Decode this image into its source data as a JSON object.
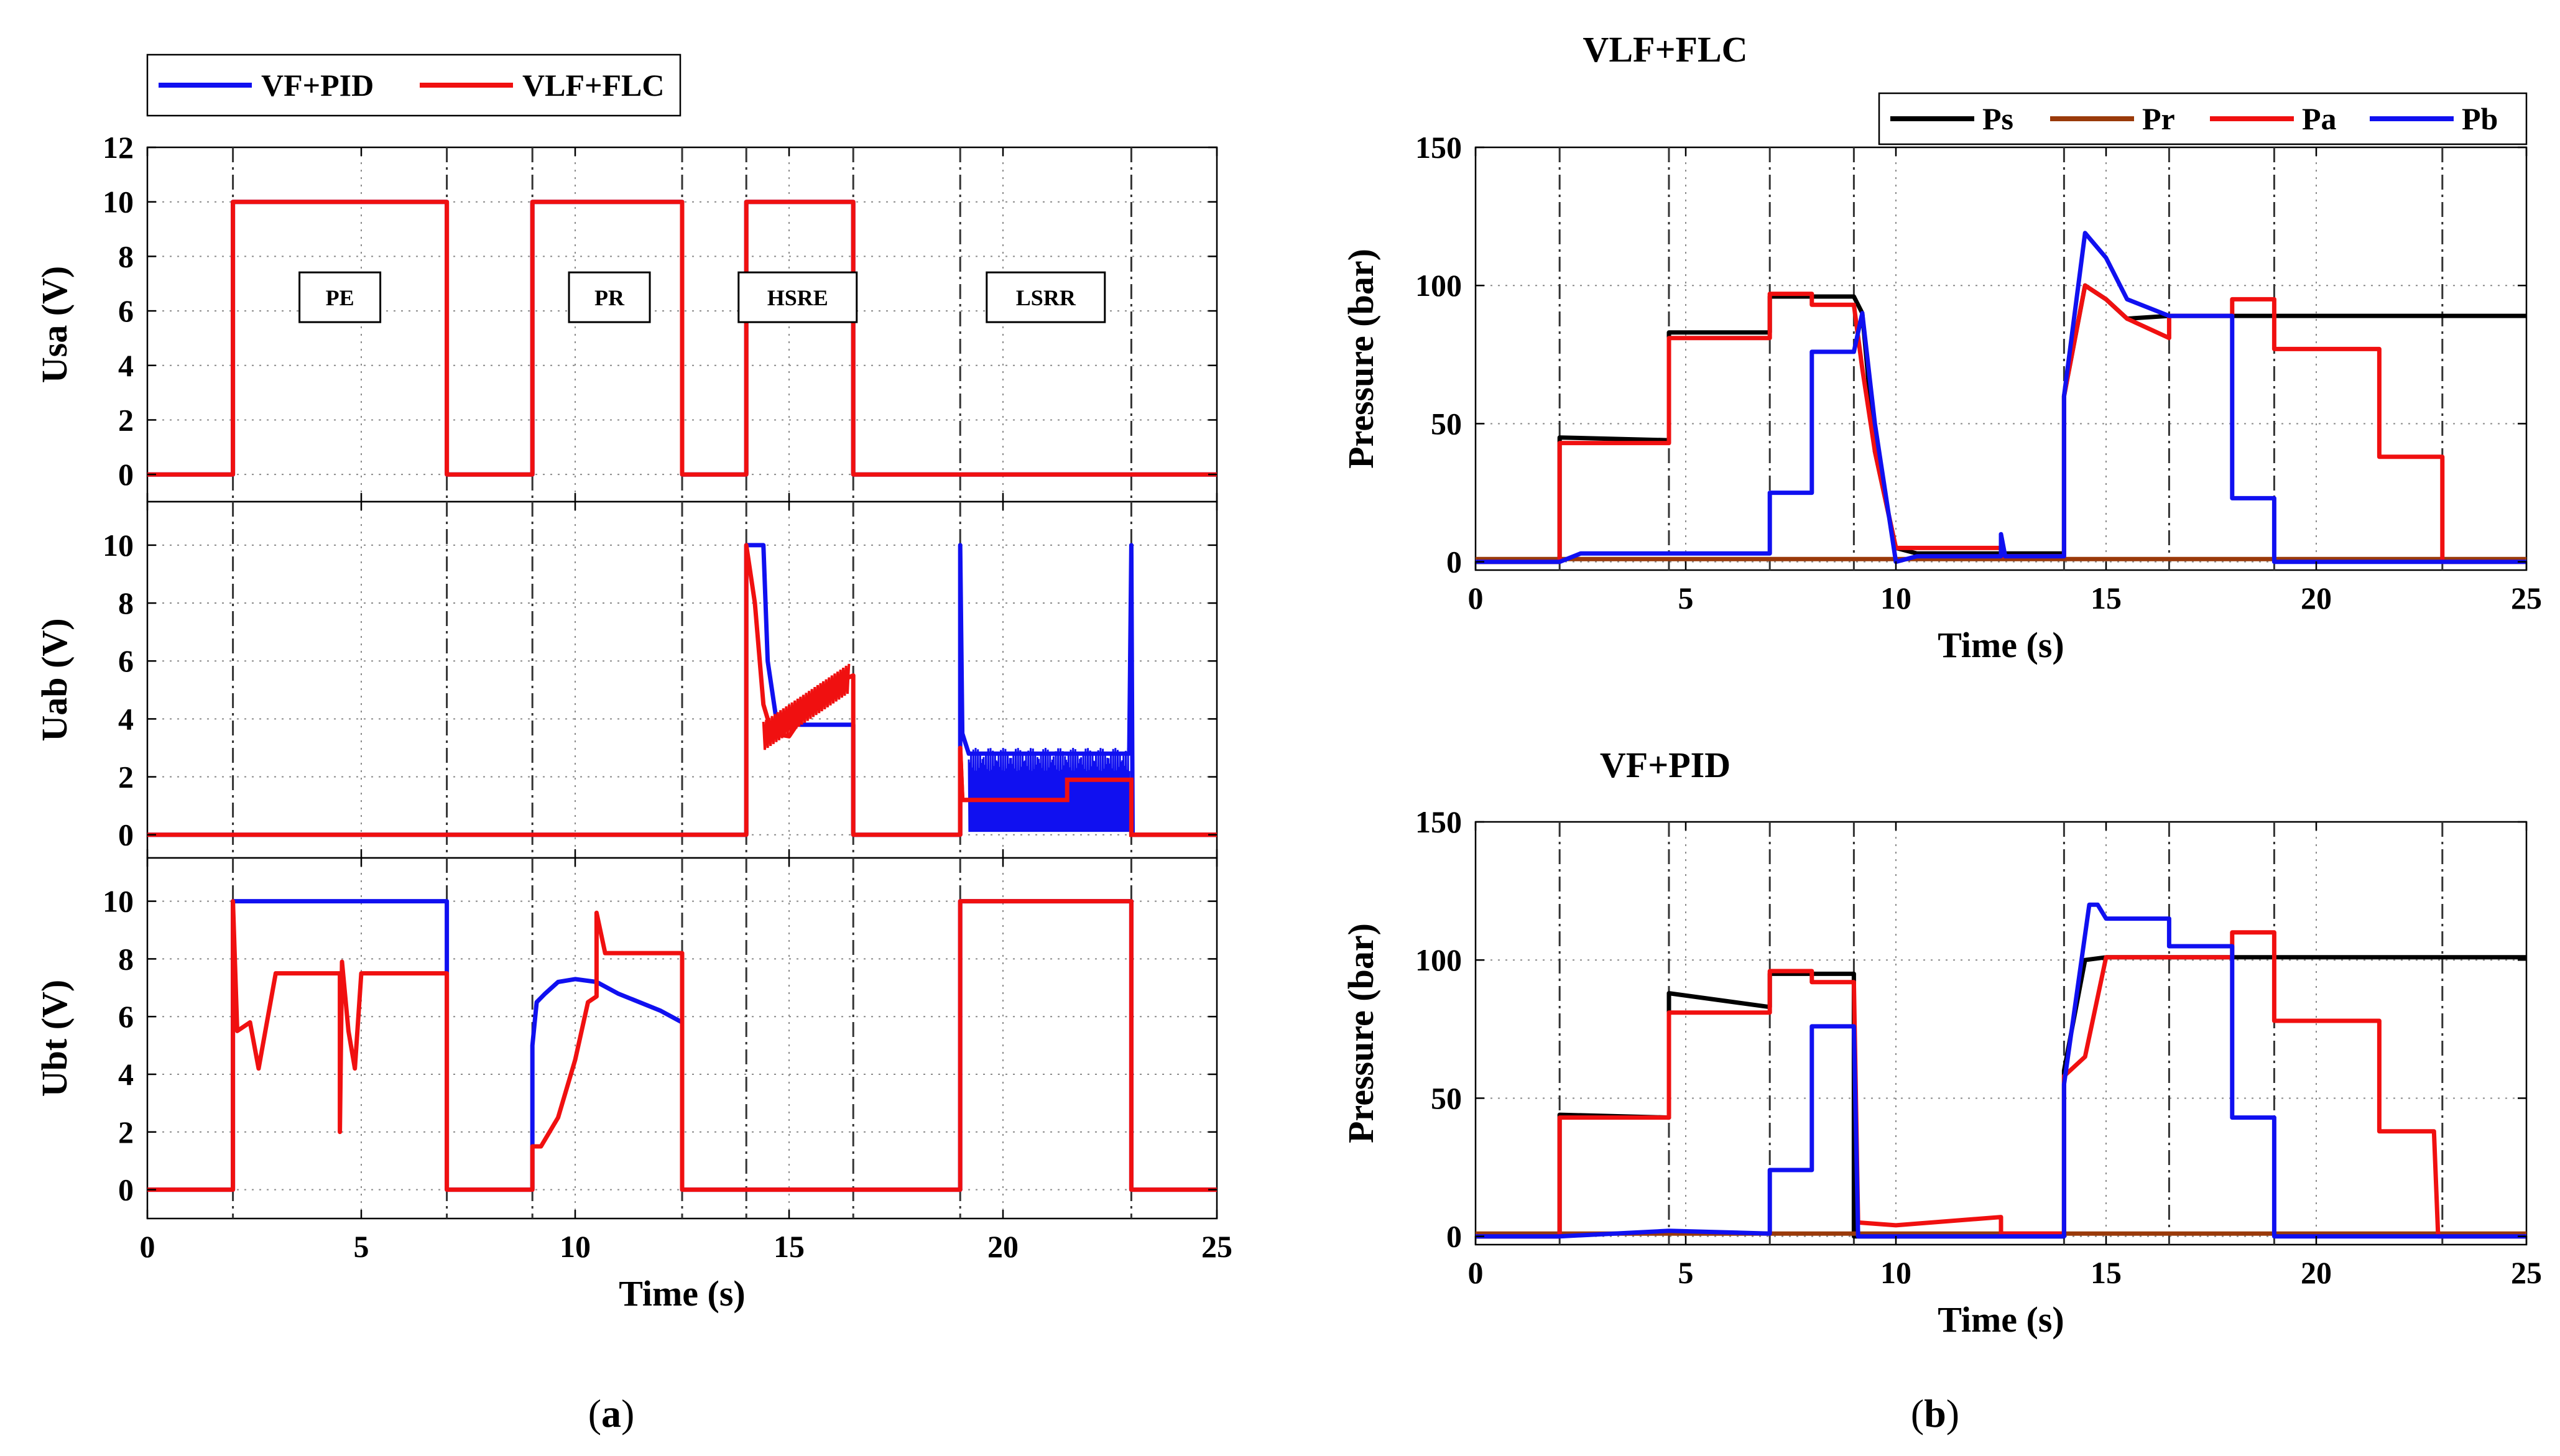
{
  "colors": {
    "blue": "#1010f0",
    "red": "#f01010",
    "black": "#000000",
    "brown": "#9a3a0a"
  },
  "labels": {
    "caption_a_open": "(",
    "caption_a": "a",
    "caption_a_close": ")",
    "caption_b_open": "(",
    "caption_b": "b",
    "caption_b_close": ")"
  },
  "chart_data": [
    {
      "id": "usa",
      "type": "line",
      "title": "",
      "xlabel": "",
      "ylabel": "Usa (V)",
      "xlim": [
        0,
        25
      ],
      "ylim": [
        -1,
        12
      ],
      "xticks": [
        0,
        5,
        10,
        15,
        20,
        25
      ],
      "yticks": [
        0,
        2,
        4,
        6,
        8,
        10,
        12
      ],
      "show_xticklabels": false,
      "vlines": [
        2,
        7,
        9,
        12.5,
        14,
        16.5,
        19,
        23
      ],
      "legend": {
        "placement": "top-left-outside",
        "entries": [
          {
            "name": "VF+PID",
            "color": "blue"
          },
          {
            "name": "VLF+FLC",
            "color": "red"
          }
        ]
      },
      "annotations": [
        {
          "text": "PE",
          "x": 4.5,
          "y": 6.5
        },
        {
          "text": "PR",
          "x": 10.8,
          "y": 6.5
        },
        {
          "text": "HSRE",
          "x": 15.2,
          "y": 6.5
        },
        {
          "text": "LSRR",
          "x": 21,
          "y": 6.5
        }
      ],
      "series": [
        {
          "name": "VF+PID",
          "color": "blue",
          "x": [
            0,
            2,
            2,
            7,
            7,
            9,
            9,
            12.5,
            12.5,
            14,
            14,
            16.5,
            16.5,
            25
          ],
          "y": [
            0,
            0,
            10,
            10,
            0,
            0,
            10,
            10,
            0,
            0,
            10,
            10,
            0,
            0
          ]
        },
        {
          "name": "VLF+FLC",
          "color": "red",
          "x": [
            0,
            2,
            2,
            7,
            7,
            9,
            9,
            12.5,
            12.5,
            14,
            14,
            16.5,
            16.5,
            25
          ],
          "y": [
            0,
            0,
            10,
            10,
            0,
            0,
            10,
            10,
            0,
            0,
            10,
            10,
            0,
            0
          ]
        }
      ]
    },
    {
      "id": "uab",
      "type": "line",
      "title": "",
      "xlabel": "",
      "ylabel": "Uab (V)",
      "xlim": [
        0,
        25
      ],
      "ylim": [
        -0.8,
        11.5
      ],
      "xticks": [
        0,
        5,
        10,
        15,
        20,
        25
      ],
      "yticks": [
        0,
        2,
        4,
        6,
        8,
        10
      ],
      "show_xticklabels": false,
      "vlines": [
        2,
        7,
        9,
        12.5,
        14,
        16.5,
        19,
        23
      ],
      "series": [
        {
          "name": "VF+PID",
          "color": "blue",
          "x": [
            0,
            14,
            14,
            14.1,
            14.4,
            14.5,
            14.7,
            15,
            15.5,
            16.5,
            16.5,
            19,
            19,
            19.05,
            19.2,
            19.2,
            22.95,
            23,
            23.03,
            23.05,
            25
          ],
          "y": [
            0,
            0,
            10,
            10,
            10,
            6,
            4,
            3.8,
            3.8,
            3.8,
            0,
            0,
            10,
            3.5,
            2.8,
            2.8,
            2.8,
            10,
            0,
            0,
            0
          ]
        },
        {
          "name": "VLF+FLC",
          "color": "red",
          "x": [
            0,
            14,
            14,
            14.2,
            14.4,
            14.6,
            15,
            15.5,
            16,
            16.5,
            16.5,
            19,
            19,
            19.05,
            19.2,
            21.5,
            21.5,
            23,
            23,
            25
          ],
          "y": [
            0,
            0,
            10,
            8,
            4.5,
            3.5,
            3.4,
            4.5,
            5.2,
            5.5,
            0,
            0,
            3,
            1.2,
            1.2,
            1.2,
            1.9,
            1.9,
            0,
            0
          ]
        }
      ]
    },
    {
      "id": "ubt",
      "type": "line",
      "title": "",
      "xlabel": "Time (s)",
      "ylabel": "Ubt (V)",
      "xlim": [
        0,
        25
      ],
      "ylim": [
        -1,
        11.5
      ],
      "xticks": [
        0,
        5,
        10,
        15,
        20,
        25
      ],
      "yticks": [
        0,
        2,
        4,
        6,
        8,
        10
      ],
      "show_xticklabels": true,
      "vlines": [
        2,
        7,
        9,
        12.5,
        14,
        16.5,
        19,
        23
      ],
      "series": [
        {
          "name": "VF+PID",
          "color": "blue",
          "x": [
            0,
            2,
            2,
            7,
            7,
            9,
            9,
            9.1,
            9.3,
            9.6,
            10,
            10.5,
            11,
            12,
            12.5,
            12.5,
            19,
            19,
            23,
            23,
            25
          ],
          "y": [
            0,
            0,
            10,
            10,
            0,
            0,
            5,
            6.5,
            6.8,
            7.2,
            7.3,
            7.2,
            6.8,
            6.2,
            5.8,
            0,
            0,
            10,
            10,
            0,
            0
          ]
        },
        {
          "name": "VLF+FLC",
          "color": "red",
          "x": [
            0,
            2,
            2,
            2.1,
            2.4,
            2.6,
            3,
            4.5,
            4.5,
            4.55,
            4.7,
            4.85,
            5,
            7,
            7,
            9,
            9,
            9.2,
            9.6,
            10,
            10.3,
            10.5,
            10.5,
            10.7,
            12.5,
            12.5,
            19,
            19,
            23,
            23,
            25
          ],
          "y": [
            0,
            0,
            10,
            5.5,
            5.8,
            4.2,
            7.5,
            7.5,
            2,
            7.9,
            5.5,
            4.2,
            7.5,
            7.5,
            0,
            0,
            1.5,
            1.5,
            2.5,
            4.5,
            6.5,
            6.7,
            9.6,
            8.2,
            8.2,
            0,
            0,
            10,
            10,
            0,
            0
          ]
        }
      ]
    },
    {
      "id": "pressure_vlf_flc",
      "type": "line",
      "title": "VLF+FLC",
      "xlabel": "Time (s)",
      "ylabel": "Pressure (bar)",
      "xlim": [
        0,
        25
      ],
      "ylim": [
        -3,
        150
      ],
      "xticks": [
        0,
        5,
        10,
        15,
        20,
        25
      ],
      "yticks": [
        0,
        50,
        100,
        150
      ],
      "show_xticklabels": true,
      "vlines": [
        2,
        4.6,
        7,
        9,
        14,
        16.5,
        19,
        23
      ],
      "legend": {
        "placement": "top-right",
        "entries": [
          {
            "name": "Ps",
            "color": "black"
          },
          {
            "name": "Pr",
            "color": "brown"
          },
          {
            "name": "Pa",
            "color": "red"
          },
          {
            "name": "Pb",
            "color": "blue"
          }
        ]
      },
      "series": [
        {
          "name": "Ps",
          "color": "black",
          "x": [
            0,
            2,
            2,
            4.6,
            4.6,
            7,
            7,
            9,
            9.2,
            9.5,
            10,
            10.5,
            14,
            14,
            14.5,
            15,
            15.5,
            16.5,
            25
          ],
          "y": [
            0,
            0,
            45,
            44,
            83,
            83,
            96,
            96,
            90,
            40,
            5,
            3,
            3,
            60,
            100,
            95,
            88,
            89,
            89
          ]
        },
        {
          "name": "Pr",
          "color": "brown",
          "x": [
            0,
            25
          ],
          "y": [
            1,
            1
          ]
        },
        {
          "name": "Pa",
          "color": "red",
          "x": [
            0,
            2,
            2,
            4.6,
            4.6,
            7,
            7,
            8,
            8,
            9,
            9.2,
            9.5,
            10,
            10.5,
            12.5,
            12.5,
            14,
            14,
            14.5,
            15,
            15.5,
            16.5,
            16.5,
            18,
            18,
            19,
            19,
            21.5,
            21.5,
            23,
            23,
            25
          ],
          "y": [
            0,
            0,
            43,
            43,
            81,
            81,
            97,
            97,
            93,
            93,
            70,
            40,
            5,
            5,
            5,
            2,
            2,
            60,
            100,
            95,
            88,
            81,
            89,
            89,
            95,
            95,
            77,
            77,
            38,
            38,
            0,
            0
          ]
        },
        {
          "name": "Pb",
          "color": "blue",
          "x": [
            0,
            2,
            2.5,
            7,
            7,
            8,
            8,
            9,
            9.2,
            9.5,
            10,
            10.5,
            12.5,
            12.5,
            12.6,
            14,
            14,
            14.5,
            15,
            15.5,
            16.5,
            18,
            18,
            19,
            19,
            25
          ],
          "y": [
            0,
            0,
            3,
            3,
            25,
            25,
            76,
            76,
            90,
            50,
            0,
            2,
            2,
            10,
            2,
            2,
            60,
            119,
            110,
            95,
            89,
            89,
            23,
            23,
            0,
            0
          ]
        }
      ]
    },
    {
      "id": "pressure_vf_pid",
      "type": "line",
      "title": "VF+PID",
      "xlabel": "Time (s)",
      "ylabel": "Pressure (bar)",
      "xlim": [
        0,
        25
      ],
      "ylim": [
        -3,
        150
      ],
      "xticks": [
        0,
        5,
        10,
        15,
        20,
        25
      ],
      "yticks": [
        0,
        50,
        100,
        150
      ],
      "show_xticklabels": true,
      "vlines": [
        2,
        4.6,
        7,
        9,
        14,
        16.5,
        19,
        23
      ],
      "series": [
        {
          "name": "Ps",
          "color": "black",
          "x": [
            0,
            2,
            2,
            4.6,
            4.6,
            7,
            7,
            9,
            9,
            14,
            14,
            14.5,
            15,
            16.5,
            25
          ],
          "y": [
            0,
            0,
            44,
            43,
            88,
            83,
            95,
            95,
            0,
            0,
            60,
            100,
            101,
            101,
            101
          ]
        },
        {
          "name": "Pr",
          "color": "brown",
          "x": [
            0,
            25
          ],
          "y": [
            1,
            1
          ]
        },
        {
          "name": "Pa",
          "color": "red",
          "x": [
            0,
            2,
            2,
            4.6,
            4.6,
            7,
            7,
            8,
            8,
            9,
            9.1,
            10,
            12.5,
            12.5,
            14,
            14,
            14.5,
            15,
            16.5,
            18,
            18,
            19,
            19,
            21.5,
            21.5,
            22.8,
            22.9,
            25
          ],
          "y": [
            0,
            0,
            43,
            43,
            81,
            81,
            96,
            96,
            92,
            92,
            5,
            4,
            7,
            1,
            1,
            58,
            65,
            101,
            101,
            101,
            110,
            110,
            78,
            78,
            38,
            38,
            0,
            0
          ]
        },
        {
          "name": "Pb",
          "color": "blue",
          "x": [
            0,
            2,
            4.6,
            7,
            7,
            8,
            8,
            9,
            9.1,
            14,
            14,
            14.6,
            14.8,
            15,
            16.5,
            16.5,
            18,
            18,
            19,
            19,
            25
          ],
          "y": [
            0,
            0,
            2,
            1,
            24,
            24,
            76,
            76,
            0,
            0,
            55,
            120,
            120,
            115,
            115,
            105,
            105,
            43,
            43,
            0,
            0
          ]
        }
      ]
    }
  ]
}
